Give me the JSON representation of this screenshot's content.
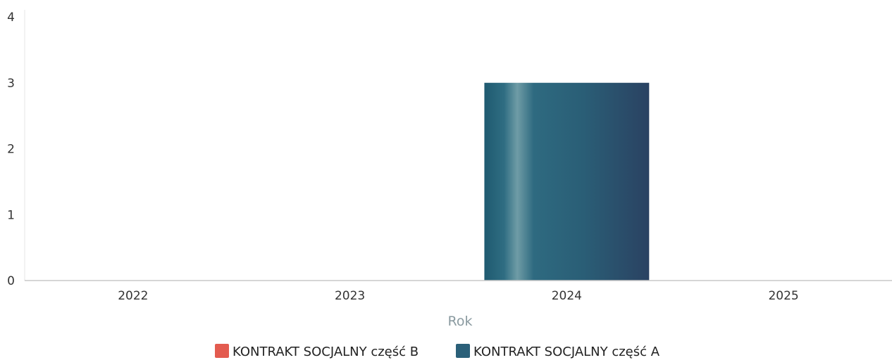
{
  "chart_data": {
    "type": "bar",
    "categories": [
      "2022",
      "2023",
      "2024",
      "2025"
    ],
    "series": [
      {
        "name": "KONTRAKT SOCJALNY część B",
        "values": [
          0,
          0,
          0,
          0
        ],
        "color": "#e35b4f"
      },
      {
        "name": "KONTRAKT SOCJALNY część A",
        "values": [
          0,
          0,
          3,
          0
        ],
        "color": "#2b6079"
      }
    ],
    "xlabel": "Rok",
    "ylabel": "",
    "ylim": [
      0,
      4
    ],
    "yticks": [
      "0",
      "1",
      "2",
      "3",
      "4"
    ],
    "grid": false,
    "legend_position": "bottom-center"
  }
}
